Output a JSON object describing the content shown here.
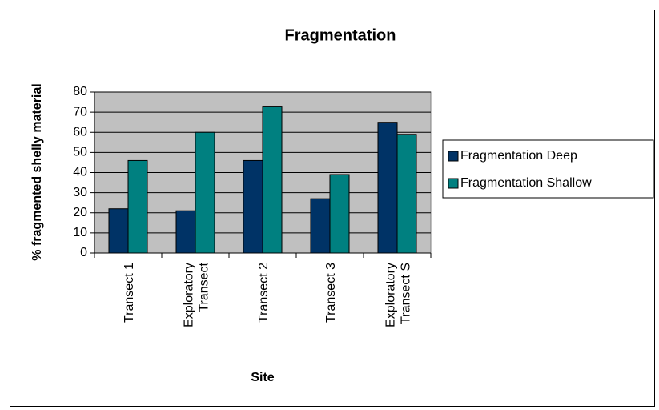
{
  "chart_data": {
    "type": "bar",
    "title": "Fragmentation",
    "x_label": "Site",
    "y_label": "% fragmented shelly material",
    "categories": [
      "Transect 1",
      "Exploratory Transect",
      "Transect 2",
      "Transect 3",
      "Exploratory Transect S"
    ],
    "series": [
      {
        "name": "Fragmentation Deep",
        "color": "#003366",
        "values": [
          22,
          21,
          46,
          27,
          65
        ]
      },
      {
        "name": "Fragmentation Shallow",
        "color": "#008080",
        "values": [
          46,
          60,
          73,
          39,
          59
        ]
      }
    ],
    "ylim": [
      0,
      80
    ],
    "yticks": [
      0,
      10,
      20,
      30,
      40,
      50,
      60,
      70,
      80
    ],
    "grid": true,
    "legend": "right"
  }
}
